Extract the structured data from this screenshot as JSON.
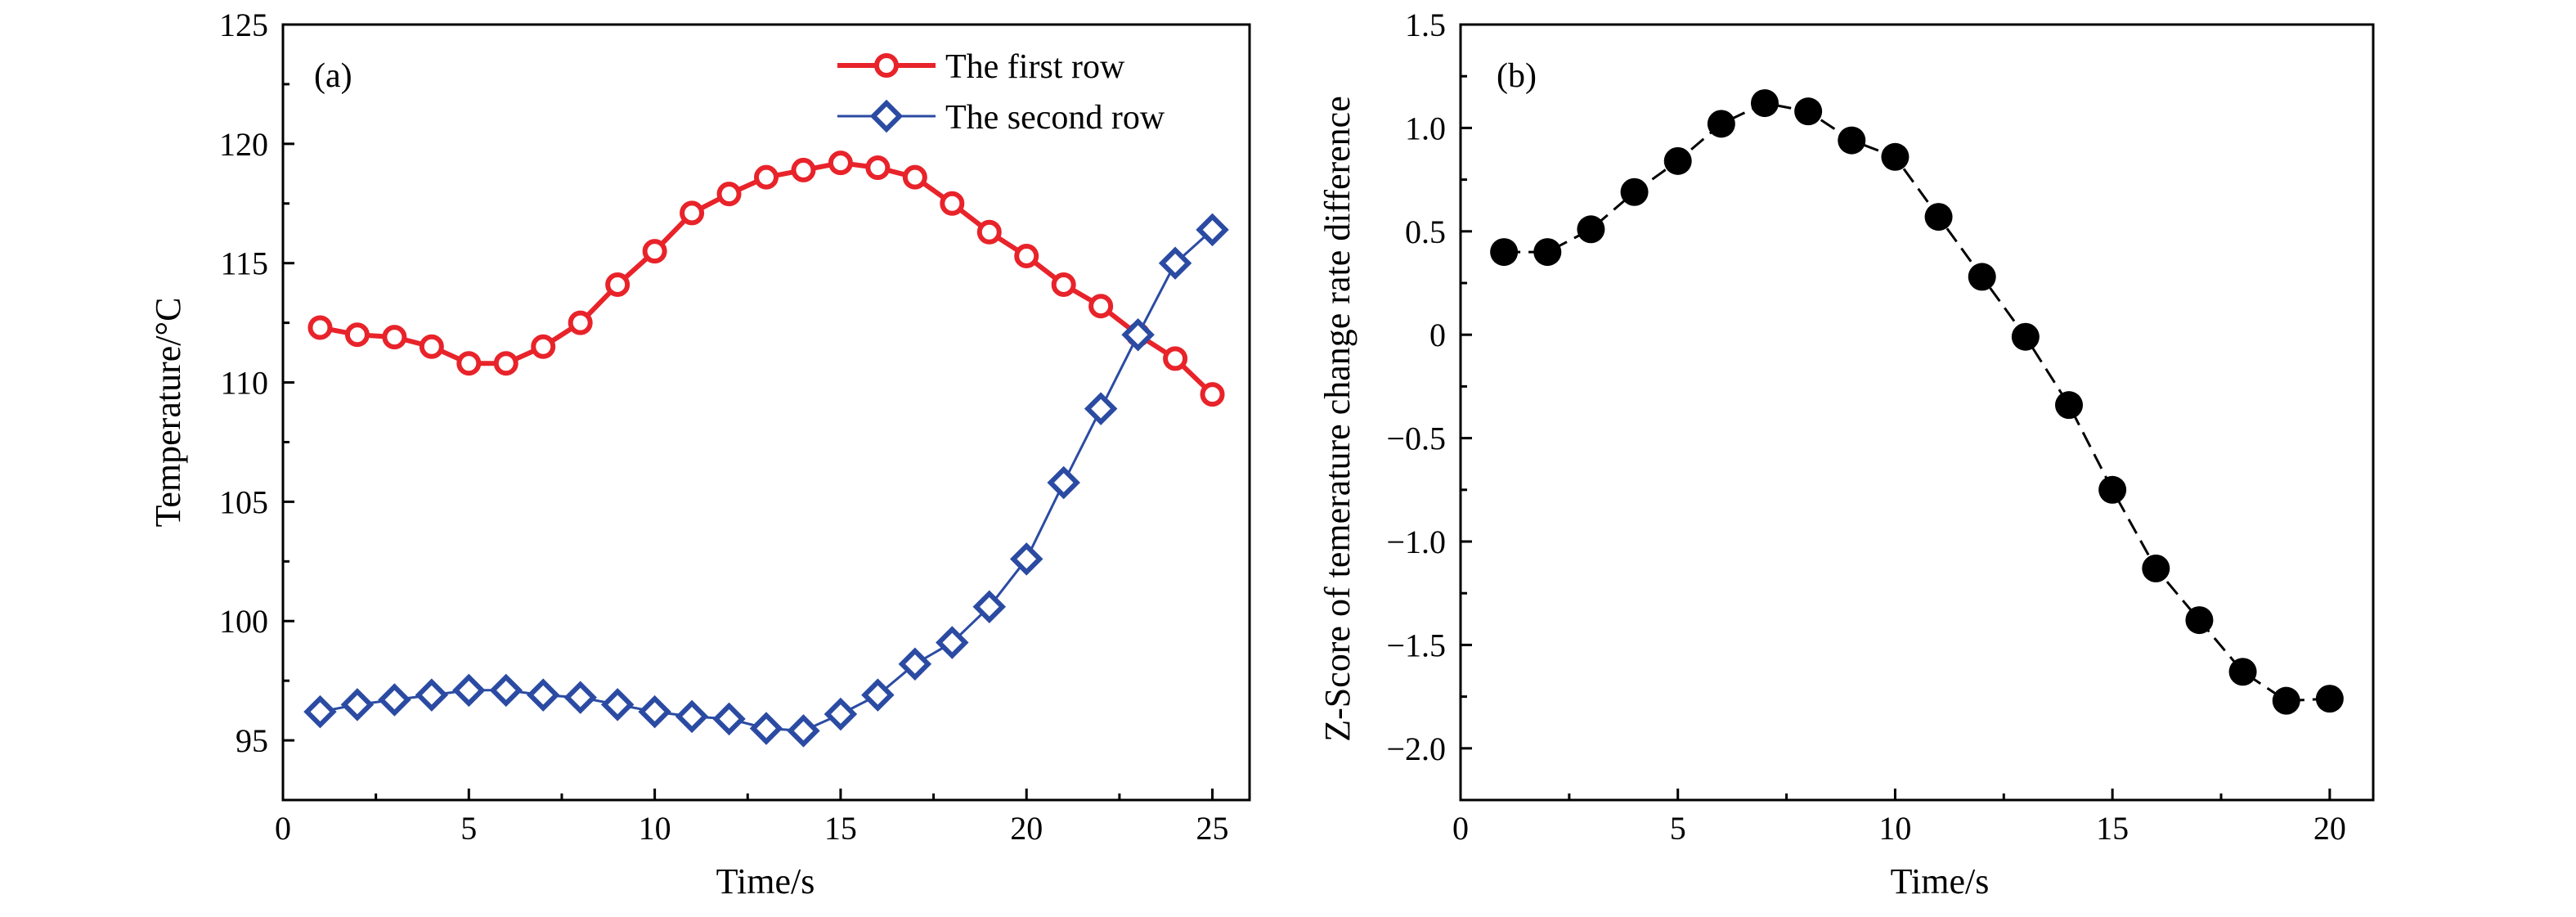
{
  "chart_data": [
    {
      "type": "line",
      "panel_label": "(a)",
      "xlabel": "Time/s",
      "ylabel": "Temperature/°C",
      "xlim": [
        0,
        26
      ],
      "ylim": [
        92.5,
        125
      ],
      "xticks": [
        0,
        5,
        10,
        15,
        20,
        25
      ],
      "yticks": [
        95,
        100,
        105,
        110,
        115,
        120,
        125
      ],
      "xtick_labels": [
        "0",
        "5",
        "10",
        "15",
        "20",
        "25"
      ],
      "ytick_labels": [
        "95",
        "100",
        "105",
        "110",
        "115",
        "120",
        "125"
      ],
      "grid": false,
      "legend_position": "top-right",
      "x": [
        1,
        2,
        3,
        4,
        5,
        6,
        7,
        8,
        9,
        10,
        11,
        12,
        13,
        14,
        15,
        16,
        17,
        18,
        19,
        20,
        21,
        22,
        23,
        24,
        25
      ],
      "series": [
        {
          "name": "The first row",
          "color": "#e8232a",
          "marker": "circle",
          "values": [
            112.3,
            112.0,
            111.9,
            111.5,
            110.8,
            110.8,
            111.5,
            112.5,
            114.1,
            115.5,
            117.1,
            117.9,
            118.6,
            118.9,
            119.2,
            119.0,
            118.6,
            117.5,
            116.3,
            115.3,
            114.1,
            113.2,
            112.0,
            111.0,
            109.5
          ]
        },
        {
          "name": "The second row",
          "color": "#2b4ba3",
          "marker": "diamond",
          "values": [
            96.2,
            96.5,
            96.7,
            96.9,
            97.1,
            97.1,
            96.9,
            96.8,
            96.5,
            96.2,
            96.0,
            95.9,
            95.5,
            95.4,
            96.1,
            96.9,
            98.2,
            99.1,
            100.6,
            102.6,
            105.8,
            108.9,
            112.0,
            115.0,
            116.4
          ]
        }
      ]
    },
    {
      "type": "line",
      "panel_label": "(b)",
      "xlabel": "Time/s",
      "ylabel": "Z-Score of temerature change rate difference",
      "xlim": [
        0,
        21
      ],
      "ylim": [
        -2.25,
        1.5
      ],
      "xticks": [
        0,
        5,
        10,
        15,
        20
      ],
      "yticks": [
        -2.0,
        -1.5,
        -1.0,
        -0.5,
        0,
        0.5,
        1.0,
        1.5
      ],
      "xtick_labels": [
        "0",
        "5",
        "10",
        "15",
        "20"
      ],
      "ytick_labels": [
        "−2.0",
        "−1.5",
        "−1.0",
        "−0.5",
        "0",
        "0.5",
        "1.0",
        "1.5"
      ],
      "grid": false,
      "series": [
        {
          "color": "#000000",
          "marker": "filled-circle",
          "line_style": "dashed",
          "x": [
            1,
            2,
            3,
            4,
            5,
            6,
            7,
            8,
            9,
            10,
            11,
            12,
            13,
            14,
            15,
            16,
            17,
            18,
            19,
            20
          ],
          "values": [
            0.4,
            0.4,
            0.51,
            0.69,
            0.84,
            1.02,
            1.12,
            1.08,
            0.94,
            0.86,
            0.57,
            0.28,
            -0.01,
            -0.34,
            -0.75,
            -1.13,
            -1.38,
            -1.63,
            -1.77,
            -1.76
          ]
        }
      ]
    }
  ]
}
